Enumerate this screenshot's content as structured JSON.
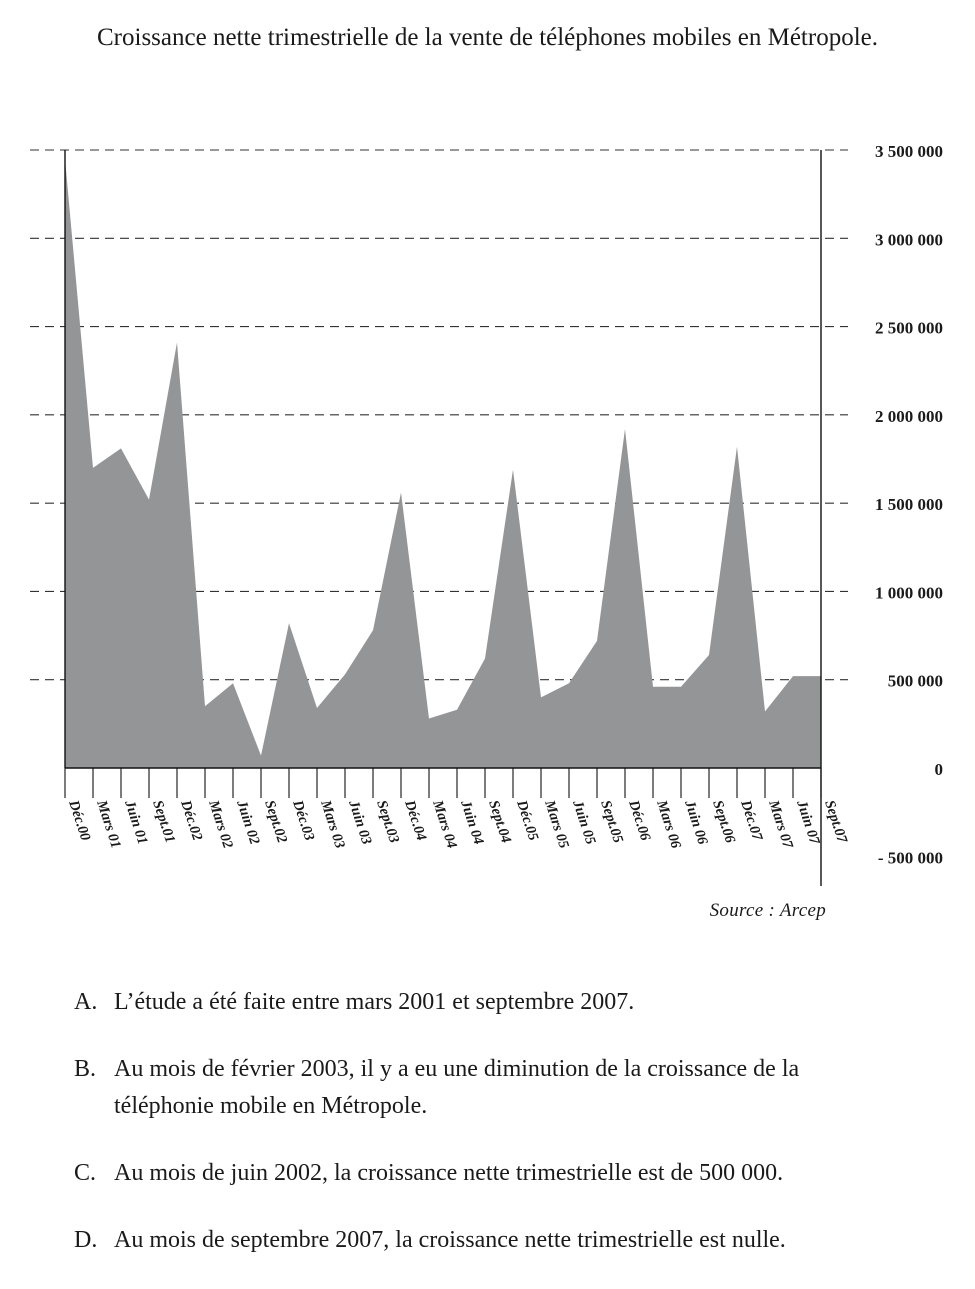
{
  "title": "Croissance nette trimestrielle de la vente de téléphones mobiles en Métropole.",
  "source": "Source : Arcep",
  "chart_data": {
    "type": "area",
    "title": "Croissance nette trimestrielle de la vente de téléphones mobiles en Métropole.",
    "xlabel": "",
    "ylabel": "",
    "ylim": [
      -500000,
      3500000
    ],
    "grid": true,
    "color": "#939597",
    "y_ticks": [
      3500000,
      3000000,
      2500000,
      2000000,
      1500000,
      1000000,
      500000,
      0,
      -500000
    ],
    "y_tick_labels": [
      "3 500 000",
      "3 000 000",
      "2 500 000",
      "2 000 000",
      "1 500 000",
      "1 000 000",
      "500 000",
      "0",
      "- 500 000"
    ],
    "categories": [
      "Déc.00",
      "Mars 01",
      "Juin 01",
      "Sept.01",
      "Déc.02",
      "Mars 02",
      "Juin 02",
      "Sept.02",
      "Déc.03",
      "Mars 03",
      "Juin 03",
      "Sept.03",
      "Déc.04",
      "Mars 04",
      "Juin 04",
      "Sept.04",
      "Déc.05",
      "Mars 05",
      "Juin 05",
      "Sept.05",
      "Déc.06",
      "Mars 06",
      "Juin 06",
      "Sept.06",
      "Déc.07",
      "Mars 07",
      "Juin 07",
      "Sept.07"
    ],
    "values": [
      3450000,
      1700000,
      1810000,
      1520000,
      2410000,
      350000,
      480000,
      70000,
      820000,
      340000,
      530000,
      780000,
      1560000,
      280000,
      330000,
      620000,
      1690000,
      400000,
      480000,
      720000,
      1920000,
      460000,
      460000,
      640000,
      1820000,
      320000,
      520000,
      520000
    ]
  },
  "options": [
    {
      "letter": "A.",
      "text": "L’étude a été faite entre mars 2001 et septembre 2007."
    },
    {
      "letter": "B.",
      "text": "Au mois de février 2003, il y a eu une diminution de la croissance de la téléphonie mobile en Métropole."
    },
    {
      "letter": "C.",
      "text": "Au mois de juin 2002, la croissance nette trimestrielle est de 500 000."
    },
    {
      "letter": "D.",
      "text": "Au mois de septembre 2007, la croissance nette trimestrielle est nulle."
    }
  ]
}
